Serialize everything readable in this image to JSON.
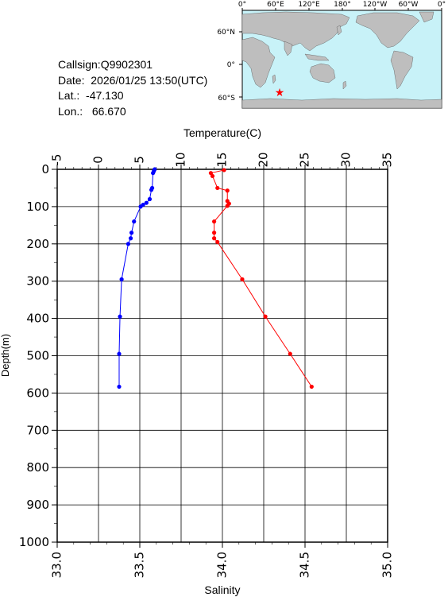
{
  "info": {
    "callsign_label": "Callsign:",
    "callsign": "Q9902301",
    "date_label": "Date:",
    "date": "2026/01/25 13:50(UTC)",
    "lat_label": "Lat.:",
    "lat": "-47.130",
    "lon_label": "Lon.:",
    "lon": "66.670"
  },
  "map": {
    "top_labels": [
      "0°",
      "60°E",
      "120°E",
      "180°",
      "120°W",
      "60°W",
      "0°"
    ],
    "side_labels": [
      "60°N",
      "0°",
      "60°S"
    ],
    "ocean_color": "#c8f2f8",
    "land_color": "#bebebe",
    "marker_color": "#ff0000",
    "marker_icon": "star-icon"
  },
  "chart_data": {
    "type": "line",
    "top_axis_label": "Temperature(C)",
    "bottom_axis_label": "Salinity",
    "left_axis_label": "Depth(m)",
    "temperature_ticks": [
      "-5",
      "0",
      "5",
      "10",
      "15",
      "20",
      "25",
      "30",
      "35"
    ],
    "temperature_range": [
      -5,
      35
    ],
    "salinity_ticks": [
      "33.0",
      "33.5",
      "34.0",
      "34.5",
      "35.0"
    ],
    "salinity_range": [
      33.0,
      35.0
    ],
    "depth_ticks": [
      "0",
      "100",
      "200",
      "300",
      "400",
      "500",
      "600",
      "700",
      "800",
      "900",
      "1000"
    ],
    "depth_range": [
      0,
      1000
    ],
    "grid": true,
    "series": [
      {
        "axis": "temperature",
        "color": "#0000ff",
        "points": [
          [
            6.8,
            0
          ],
          [
            6.7,
            5
          ],
          [
            6.6,
            10
          ],
          [
            6.5,
            50
          ],
          [
            6.4,
            55
          ],
          [
            6.2,
            80
          ],
          [
            5.8,
            90
          ],
          [
            5.4,
            95
          ],
          [
            5.1,
            100
          ],
          [
            4.3,
            140
          ],
          [
            4.0,
            170
          ],
          [
            3.9,
            185
          ],
          [
            3.6,
            200
          ],
          [
            2.8,
            295
          ],
          [
            2.6,
            395
          ],
          [
            2.5,
            495
          ],
          [
            2.5,
            583
          ]
        ]
      },
      {
        "axis": "salinity",
        "color": "#ff0000",
        "points": [
          [
            34.01,
            2
          ],
          [
            33.93,
            10
          ],
          [
            33.94,
            18
          ],
          [
            33.97,
            50
          ],
          [
            34.03,
            57
          ],
          [
            34.03,
            85
          ],
          [
            34.04,
            92
          ],
          [
            34.03,
            98
          ],
          [
            33.95,
            140
          ],
          [
            33.95,
            170
          ],
          [
            33.95,
            185
          ],
          [
            33.97,
            195
          ],
          [
            34.12,
            295
          ],
          [
            34.26,
            395
          ],
          [
            34.41,
            495
          ],
          [
            34.54,
            583
          ]
        ]
      }
    ]
  }
}
